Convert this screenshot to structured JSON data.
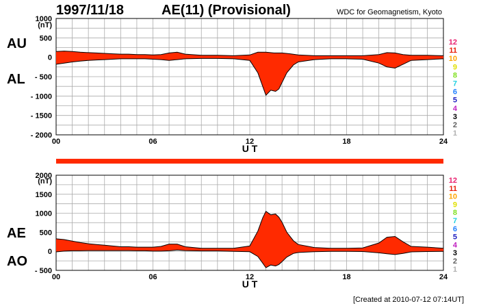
{
  "header": {
    "date": "1997/11/18",
    "title": "AE(11) (Provisional)",
    "source": "WDC for Geomagnetism, Kyoto"
  },
  "footer": {
    "created": "[Created at 2010-07-12 07:14UT]"
  },
  "legend_numbers": [
    {
      "label": "12",
      "color": "#e8206e"
    },
    {
      "label": "11",
      "color": "#e8200a"
    },
    {
      "label": "10",
      "color": "#ffa500"
    },
    {
      "label": "9",
      "color": "#e0e000"
    },
    {
      "label": "8",
      "color": "#80e020"
    },
    {
      "label": "7",
      "color": "#20d0e0"
    },
    {
      "label": "6",
      "color": "#2080ff"
    },
    {
      "label": "5",
      "color": "#2020c0"
    },
    {
      "label": "4",
      "color": "#c020c0"
    },
    {
      "label": "3",
      "color": "#000000"
    },
    {
      "label": "2",
      "color": "#606060"
    },
    {
      "label": "1",
      "color": "#b0b0b0"
    }
  ],
  "colors": {
    "fill": "#ff2a00",
    "outline": "#000000",
    "grid": "#aaaaaa",
    "bar": "#ff2a00"
  },
  "chart_data": [
    {
      "type": "area",
      "panel": "AU/AL",
      "labels": {
        "upper": "AU",
        "lower": "AL",
        "unit": "(nT)",
        "xlabel": "U T"
      },
      "ylim": [
        -2000,
        1000
      ],
      "yticks": [
        1000,
        500,
        0,
        -500,
        -1000,
        -1500,
        -2000
      ],
      "ytick_labels": [
        "1000",
        "500",
        "0",
        "- 500",
        "- 1000",
        "- 1500",
        "- 2000"
      ],
      "xlim": [
        0,
        24
      ],
      "xticks": [
        0,
        6,
        12,
        18,
        24
      ],
      "xtick_labels": [
        "00",
        "06",
        "12",
        "18",
        "24"
      ],
      "grid": true,
      "series": [
        {
          "name": "AU",
          "x": [
            0,
            0.5,
            1,
            1.5,
            2,
            2.5,
            3,
            3.5,
            4,
            4.5,
            5,
            5.5,
            6,
            6.5,
            7,
            7.5,
            8,
            9,
            10,
            11,
            12,
            12.5,
            13,
            13.5,
            14,
            14.5,
            15,
            16,
            17,
            18,
            19,
            20,
            20.5,
            21,
            21.5,
            22,
            23,
            24
          ],
          "values": [
            150,
            160,
            150,
            130,
            120,
            110,
            100,
            90,
            80,
            80,
            70,
            70,
            60,
            70,
            110,
            130,
            80,
            50,
            50,
            40,
            60,
            130,
            130,
            110,
            110,
            90,
            60,
            40,
            40,
            40,
            40,
            70,
            120,
            110,
            70,
            50,
            50,
            40
          ]
        },
        {
          "name": "AL",
          "x": [
            0,
            0.5,
            1,
            1.5,
            2,
            2.5,
            3,
            3.5,
            4,
            4.5,
            5,
            5.5,
            6,
            6.5,
            7,
            7.5,
            8,
            9,
            10,
            11,
            12,
            12.5,
            12.8,
            13,
            13.3,
            13.6,
            13.8,
            14,
            14.3,
            14.7,
            15,
            16,
            17,
            18,
            19,
            20,
            20.5,
            21,
            21.5,
            22,
            23,
            24
          ],
          "values": [
            -180,
            -150,
            -120,
            -100,
            -80,
            -70,
            -60,
            -50,
            -40,
            -40,
            -40,
            -40,
            -50,
            -60,
            -80,
            -60,
            -40,
            -30,
            -30,
            -40,
            -80,
            -400,
            -750,
            -980,
            -850,
            -880,
            -820,
            -650,
            -400,
            -200,
            -120,
            -60,
            -40,
            -40,
            -50,
            -150,
            -250,
            -280,
            -180,
            -80,
            -60,
            -40
          ]
        }
      ]
    },
    {
      "type": "area",
      "panel": "AE/AO",
      "labels": {
        "upper": "AE",
        "lower": "AO",
        "unit": "(nT)",
        "xlabel": "U T"
      },
      "ylim": [
        -500,
        2000
      ],
      "yticks": [
        2000,
        1500,
        1000,
        500,
        0,
        -500
      ],
      "ytick_labels": [
        "2000",
        "1500",
        "1000",
        "500",
        "0",
        "- 500"
      ],
      "xlim": [
        0,
        24
      ],
      "xticks": [
        0,
        6,
        12,
        18,
        24
      ],
      "xtick_labels": [
        "00",
        "06",
        "12",
        "18",
        "24"
      ],
      "grid": true,
      "series": [
        {
          "name": "AE",
          "x": [
            0,
            0.5,
            1,
            1.5,
            2,
            2.5,
            3,
            3.5,
            4,
            4.5,
            5,
            5.5,
            6,
            6.5,
            7,
            7.5,
            8,
            9,
            10,
            11,
            12,
            12.5,
            12.8,
            13,
            13.3,
            13.6,
            13.8,
            14,
            14.3,
            14.7,
            15,
            16,
            17,
            18,
            19,
            20,
            20.5,
            21,
            21.5,
            22,
            23,
            24
          ],
          "values": [
            330,
            310,
            270,
            230,
            200,
            180,
            160,
            140,
            120,
            120,
            110,
            110,
            110,
            130,
            190,
            190,
            120,
            80,
            80,
            80,
            140,
            530,
            880,
            1050,
            960,
            980,
            900,
            760,
            500,
            280,
            180,
            100,
            80,
            80,
            90,
            220,
            370,
            390,
            250,
            130,
            110,
            80
          ]
        },
        {
          "name": "AO",
          "x": [
            0,
            0.5,
            1,
            1.5,
            2,
            2.5,
            3,
            3.5,
            4,
            4.5,
            5,
            5.5,
            6,
            6.5,
            7,
            7.5,
            8,
            9,
            10,
            11,
            12,
            12.5,
            12.8,
            13,
            13.3,
            13.6,
            13.8,
            14,
            14.3,
            14.7,
            15,
            16,
            17,
            18,
            19,
            20,
            20.5,
            21,
            21.5,
            22,
            23,
            24
          ],
          "values": [
            -15,
            5,
            15,
            15,
            20,
            20,
            20,
            20,
            20,
            20,
            15,
            15,
            5,
            5,
            15,
            35,
            20,
            10,
            10,
            0,
            -10,
            -135,
            -310,
            -430,
            -360,
            -385,
            -345,
            -270,
            -150,
            -55,
            -30,
            -10,
            0,
            0,
            -5,
            -40,
            -65,
            -85,
            -55,
            -15,
            -5,
            0
          ]
        }
      ]
    }
  ]
}
